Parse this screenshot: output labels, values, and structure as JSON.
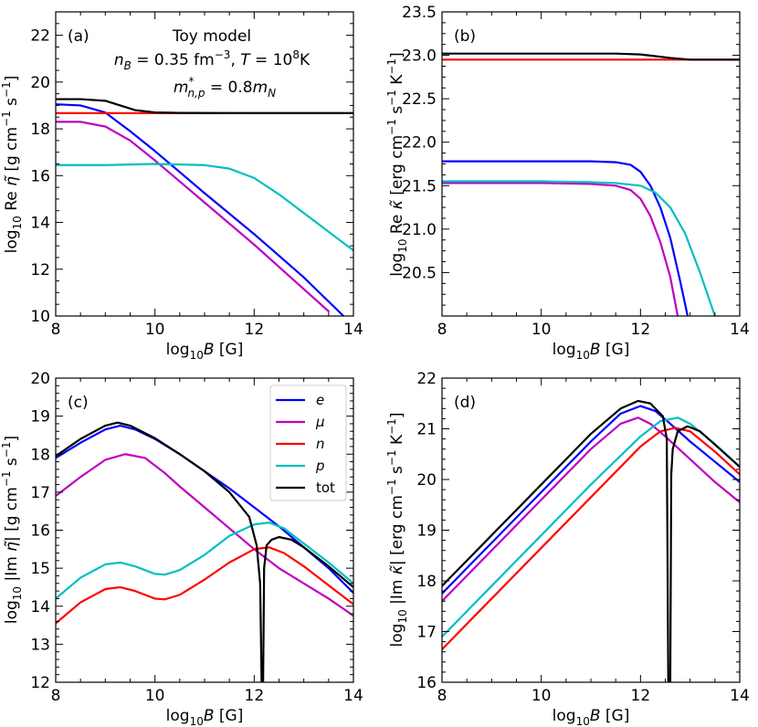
{
  "colors": {
    "e": "#0000ff",
    "mu": "#bf00bf",
    "n": "#ff0000",
    "p": "#00bfbf",
    "tot": "#000000"
  },
  "chart_data": [
    {
      "id": "a",
      "type": "line",
      "panel_label": "(a)",
      "annotation": [
        "Toy model",
        "n_B = 0.35 fm^-3, T = 10^8 K",
        "m*_{n,p} = 0.8 m_N"
      ],
      "xlabel": "log10 B [G]",
      "ylabel": "log10 Re η̃ [g cm^-1 s^-1]",
      "xlim": [
        8,
        14
      ],
      "ylim": [
        10,
        23
      ],
      "xticks": [
        8,
        10,
        12,
        14
      ],
      "yticks": [
        10,
        12,
        14,
        16,
        18,
        20,
        22
      ],
      "series": [
        {
          "name": "e",
          "x": [
            8,
            8.5,
            9,
            9.5,
            10,
            10.5,
            11,
            12,
            13,
            13.8
          ],
          "y": [
            19.05,
            19.0,
            18.7,
            17.9,
            17.05,
            16.15,
            15.25,
            13.5,
            11.65,
            10.0
          ]
        },
        {
          "name": "μ",
          "x": [
            8,
            8.5,
            9,
            9.5,
            10,
            10.5,
            11,
            12,
            13,
            13.5
          ],
          "y": [
            18.3,
            18.3,
            18.1,
            17.5,
            16.65,
            15.75,
            14.85,
            13.05,
            11.15,
            10.2
          ]
        },
        {
          "name": "n",
          "x": [
            8,
            10,
            12,
            14
          ],
          "y": [
            18.67,
            18.67,
            18.67,
            18.67
          ]
        },
        {
          "name": "p",
          "x": [
            8,
            9,
            10,
            11,
            11.5,
            12,
            12.5,
            13,
            13.5,
            14
          ],
          "y": [
            16.45,
            16.45,
            16.5,
            16.45,
            16.3,
            15.9,
            15.2,
            14.4,
            13.6,
            12.8
          ]
        },
        {
          "name": "tot",
          "x": [
            8,
            8.5,
            9,
            9.3,
            9.6,
            10,
            10.5,
            12,
            14
          ],
          "y": [
            19.27,
            19.27,
            19.2,
            19.0,
            18.8,
            18.7,
            18.68,
            18.67,
            18.67
          ]
        }
      ]
    },
    {
      "id": "b",
      "type": "line",
      "panel_label": "(b)",
      "xlabel": "log10 B [G]",
      "ylabel": "log10 Re κ̃ [erg cm^-1 s^-1 K^-1]",
      "xlim": [
        8,
        14
      ],
      "ylim": [
        20.0,
        23.5
      ],
      "xticks": [
        8,
        10,
        12,
        14
      ],
      "yticks": [
        20.5,
        21.0,
        21.5,
        22.0,
        22.5,
        23.0,
        23.5
      ],
      "series": [
        {
          "name": "e",
          "x": [
            8,
            10,
            11,
            11.5,
            11.8,
            12.0,
            12.2,
            12.4,
            12.6,
            12.8,
            12.95
          ],
          "y": [
            21.78,
            21.78,
            21.78,
            21.77,
            21.74,
            21.66,
            21.5,
            21.25,
            20.9,
            20.4,
            20.0
          ]
        },
        {
          "name": "μ",
          "x": [
            8,
            10,
            11,
            11.5,
            11.8,
            12.0,
            12.2,
            12.4,
            12.6,
            12.75
          ],
          "y": [
            21.53,
            21.53,
            21.52,
            21.5,
            21.45,
            21.35,
            21.15,
            20.85,
            20.45,
            20.0
          ]
        },
        {
          "name": "n",
          "x": [
            8,
            10,
            12,
            14
          ],
          "y": [
            22.95,
            22.95,
            22.95,
            22.95
          ]
        },
        {
          "name": "p",
          "x": [
            8,
            10,
            11,
            11.5,
            12,
            12.3,
            12.6,
            12.9,
            13.2,
            13.5
          ],
          "y": [
            21.55,
            21.55,
            21.54,
            21.53,
            21.5,
            21.42,
            21.25,
            20.95,
            20.5,
            20.0
          ]
        },
        {
          "name": "tot",
          "x": [
            8,
            10,
            11,
            11.5,
            12,
            12.3,
            12.6,
            13,
            14
          ],
          "y": [
            23.02,
            23.02,
            23.02,
            23.02,
            23.01,
            22.99,
            22.97,
            22.95,
            22.95
          ]
        }
      ]
    },
    {
      "id": "c",
      "type": "line",
      "panel_label": "(c)",
      "xlabel": "log10 B [G]",
      "ylabel": "log10 |Im η̃| [g cm^-1 s^-1]",
      "xlim": [
        8,
        14
      ],
      "ylim": [
        12,
        20
      ],
      "xticks": [
        8,
        10,
        12,
        14
      ],
      "yticks": [
        12,
        13,
        14,
        15,
        16,
        17,
        18,
        19,
        20
      ],
      "legend": {
        "entries": [
          "e",
          "μ",
          "n",
          "p",
          "tot"
        ],
        "position": "top-right"
      },
      "series": [
        {
          "name": "e",
          "x": [
            8,
            8.5,
            9,
            9.3,
            9.6,
            10,
            10.5,
            11,
            11.5,
            12,
            12.5,
            13,
            13.5,
            14
          ],
          "y": [
            17.9,
            18.3,
            18.65,
            18.75,
            18.65,
            18.4,
            18.0,
            17.55,
            17.1,
            16.6,
            16.1,
            15.55,
            15.0,
            14.35
          ]
        },
        {
          "name": "μ",
          "x": [
            8,
            8.5,
            9,
            9.4,
            9.8,
            10.2,
            10.5,
            11,
            11.5,
            12,
            12.5,
            13,
            13.5,
            14
          ],
          "y": [
            16.9,
            17.4,
            17.85,
            18.0,
            17.9,
            17.5,
            17.15,
            16.6,
            16.05,
            15.5,
            15.0,
            14.6,
            14.2,
            13.75
          ]
        },
        {
          "name": "n",
          "x": [
            8,
            8.5,
            9,
            9.3,
            9.6,
            10,
            10.2,
            10.5,
            11,
            11.5,
            12,
            12.3,
            12.6,
            13,
            13.5,
            14
          ],
          "y": [
            13.55,
            14.1,
            14.45,
            14.5,
            14.4,
            14.2,
            14.18,
            14.3,
            14.7,
            15.15,
            15.5,
            15.55,
            15.4,
            15.05,
            14.55,
            14.05
          ]
        },
        {
          "name": "p",
          "x": [
            8,
            8.5,
            9,
            9.3,
            9.6,
            10,
            10.2,
            10.5,
            11,
            11.5,
            12,
            12.3,
            12.6,
            13,
            13.5,
            14
          ],
          "y": [
            14.2,
            14.75,
            15.1,
            15.15,
            15.05,
            14.85,
            14.83,
            14.95,
            15.35,
            15.85,
            16.15,
            16.2,
            16.05,
            15.65,
            15.15,
            14.6
          ]
        },
        {
          "name": "tot",
          "x": [
            8,
            8.5,
            9,
            9.25,
            9.5,
            10,
            10.5,
            11,
            11.5,
            11.9,
            12.05,
            12.12,
            12.15,
            12.18,
            12.2,
            12.25,
            12.35,
            12.5,
            12.75,
            13,
            13.5,
            14
          ],
          "y": [
            17.95,
            18.4,
            18.75,
            18.83,
            18.75,
            18.42,
            18.0,
            17.55,
            17.0,
            16.35,
            15.6,
            14.6,
            12.0,
            12.0,
            15.0,
            15.6,
            15.75,
            15.82,
            15.75,
            15.55,
            15.05,
            14.5
          ]
        }
      ]
    },
    {
      "id": "d",
      "type": "line",
      "panel_label": "(d)",
      "xlabel": "log10 B [G]",
      "ylabel": "log10 |Im κ̃| [erg cm^-1 s^-1 K^-1]",
      "xlim": [
        8,
        14
      ],
      "ylim": [
        16,
        22
      ],
      "xticks": [
        8,
        10,
        12,
        14
      ],
      "yticks": [
        16,
        17,
        18,
        19,
        20,
        21,
        22
      ],
      "series": [
        {
          "name": "e",
          "x": [
            8,
            9,
            10,
            11,
            11.6,
            12.0,
            12.3,
            12.6,
            13,
            13.5,
            14
          ],
          "y": [
            17.75,
            18.75,
            19.75,
            20.75,
            21.3,
            21.45,
            21.35,
            21.1,
            20.75,
            20.35,
            19.95
          ]
        },
        {
          "name": "μ",
          "x": [
            8,
            9,
            10,
            11,
            11.6,
            11.95,
            12.2,
            12.5,
            13,
            13.5,
            14
          ],
          "y": [
            17.6,
            18.6,
            19.6,
            20.6,
            21.1,
            21.22,
            21.1,
            20.85,
            20.4,
            19.95,
            19.55
          ]
        },
        {
          "name": "n",
          "x": [
            8,
            9,
            10,
            11,
            12,
            12.4,
            12.7,
            13,
            13.5,
            14
          ],
          "y": [
            16.65,
            17.65,
            18.65,
            19.65,
            20.65,
            20.95,
            21.02,
            20.95,
            20.55,
            20.1
          ]
        },
        {
          "name": "p",
          "x": [
            8,
            9,
            10,
            11,
            12,
            12.4,
            12.75,
            13.0,
            13.5,
            14
          ],
          "y": [
            16.9,
            17.9,
            18.9,
            19.9,
            20.85,
            21.15,
            21.22,
            21.1,
            20.7,
            20.25
          ]
        },
        {
          "name": "tot",
          "x": [
            8,
            9,
            10,
            11,
            11.6,
            11.95,
            12.2,
            12.45,
            12.53,
            12.56,
            12.6,
            12.62,
            12.65,
            12.75,
            12.95,
            13.2,
            13.6,
            14
          ],
          "y": [
            17.9,
            18.9,
            19.9,
            20.9,
            21.4,
            21.55,
            21.5,
            21.25,
            20.8,
            16.0,
            16.0,
            20.1,
            20.6,
            20.95,
            21.05,
            20.95,
            20.6,
            20.25
          ]
        }
      ]
    }
  ]
}
